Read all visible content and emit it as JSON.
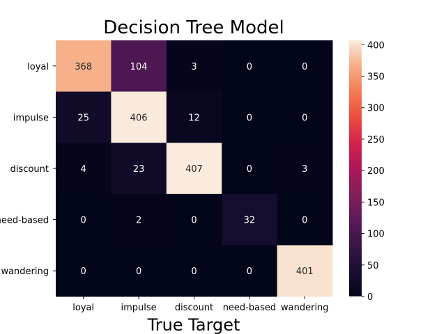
{
  "chart_data": {
    "type": "heatmap",
    "title": "Decision Tree Model",
    "xlabel": "True Target",
    "ylabel": "",
    "x_categories": [
      "loyal",
      "impulse",
      "discount",
      "need-based",
      "wandering"
    ],
    "y_categories": [
      "loyal",
      "impulse",
      "discount",
      "need-based",
      "wandering"
    ],
    "values": [
      [
        368,
        104,
        3,
        0,
        0
      ],
      [
        25,
        406,
        12,
        0,
        0
      ],
      [
        4,
        23,
        407,
        0,
        3
      ],
      [
        0,
        2,
        0,
        32,
        0
      ],
      [
        0,
        0,
        0,
        0,
        401
      ]
    ],
    "colorbar": {
      "min": 0,
      "max": 407,
      "ticks": [
        "0",
        "50",
        "100",
        "150",
        "200",
        "250",
        "300",
        "350",
        "400"
      ],
      "colormap": "rocket"
    }
  }
}
